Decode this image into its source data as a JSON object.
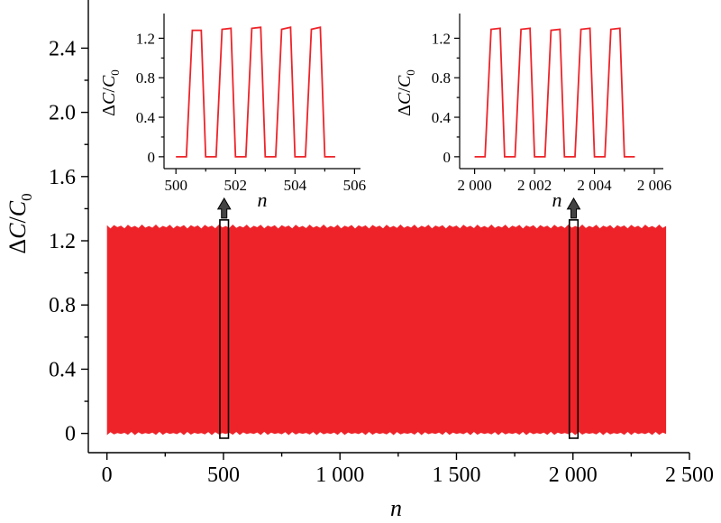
{
  "colors": {
    "series": "#ee2329",
    "axis": "#000000",
    "arrow": "#444444",
    "background": "#ffffff"
  },
  "chart_data": [
    {
      "id": "main",
      "type": "area",
      "description_of_marks": "dense cyclic signal filling the band between min and max",
      "x_range": [
        0,
        2400
      ],
      "band": {
        "min": 0.0,
        "max": 1.29
      },
      "xlim": [
        -80,
        2500
      ],
      "ylim": [
        -0.12,
        2.7
      ],
      "x_ticks": [
        0,
        500,
        1000,
        1500,
        2000,
        2500
      ],
      "x_tick_labels": [
        "0",
        "500",
        "1 000",
        "1 500",
        "2 000",
        "2 500"
      ],
      "y_ticks": [
        0,
        0.4,
        0.8,
        1.2,
        1.6,
        2.0,
        2.4
      ],
      "y_tick_labels": [
        "0",
        "0.4",
        "0.8",
        "1.2",
        "1.6",
        "2.0",
        "2.4"
      ],
      "xlabel": "n",
      "ylabel": {
        "delta": "Δ",
        "C": "C",
        "slash": "/",
        "C0": "C",
        "sub": "0"
      },
      "highlight_windows": [
        {
          "x": [
            500,
            506
          ],
          "y": [
            -0.03,
            1.33
          ]
        },
        {
          "x": [
            2000,
            2006
          ],
          "y": [
            -0.03,
            1.33
          ]
        }
      ]
    },
    {
      "id": "inset-left",
      "type": "line",
      "xlim": [
        499.6,
        506.2
      ],
      "ylim": [
        -0.12,
        1.45
      ],
      "x_ticks": [
        500,
        502,
        504,
        506
      ],
      "x_tick_labels": [
        "500",
        "502",
        "504",
        "506"
      ],
      "y_ticks": [
        0,
        0.4,
        0.8,
        1.2
      ],
      "y_tick_labels": [
        "0",
        "0.4",
        "0.8",
        "1.2"
      ],
      "xlabel": "n",
      "ylabel": {
        "delta": "Δ",
        "C": "C",
        "slash": "/",
        "C0": "C",
        "sub": "0"
      },
      "series": [
        {
          "x": [
            500.0,
            500.35,
            500.55,
            500.85,
            501.0,
            501.35,
            501.55,
            501.85,
            502.0,
            502.35,
            502.55,
            502.85,
            503.0,
            503.35,
            503.55,
            503.85,
            504.0,
            504.35,
            504.55,
            504.85,
            505.0,
            505.35
          ],
          "y": [
            0,
            0,
            1.28,
            1.28,
            0,
            0,
            1.29,
            1.3,
            0,
            0,
            1.3,
            1.31,
            0,
            0,
            1.29,
            1.31,
            0,
            0,
            1.29,
            1.31,
            0,
            0
          ]
        }
      ]
    },
    {
      "id": "inset-right",
      "type": "line",
      "xlim": [
        1999.5,
        2006.3
      ],
      "ylim": [
        -0.12,
        1.45
      ],
      "x_ticks": [
        2000,
        2002,
        2004,
        2006
      ],
      "x_tick_labels": [
        "2 000",
        "2 002",
        "2 004",
        "2 006"
      ],
      "y_ticks": [
        0,
        0.4,
        0.8,
        1.2
      ],
      "y_tick_labels": [
        "0",
        "0.4",
        "0.8",
        "1.2"
      ],
      "xlabel": "n",
      "ylabel": {
        "delta": "Δ",
        "C": "C",
        "slash": "/",
        "C0": "C",
        "sub": "0"
      },
      "series": [
        {
          "x": [
            2000.0,
            2000.35,
            2000.55,
            2000.85,
            2001.0,
            2001.35,
            2001.55,
            2001.85,
            2002.0,
            2002.35,
            2002.55,
            2002.85,
            2003.0,
            2003.35,
            2003.55,
            2003.85,
            2004.0,
            2004.35,
            2004.55,
            2004.85,
            2005.0,
            2005.35
          ],
          "y": [
            0,
            0,
            1.29,
            1.3,
            0,
            0,
            1.29,
            1.3,
            0,
            0,
            1.28,
            1.29,
            0,
            0,
            1.29,
            1.3,
            0,
            0,
            1.29,
            1.3,
            0,
            0
          ]
        }
      ]
    }
  ]
}
